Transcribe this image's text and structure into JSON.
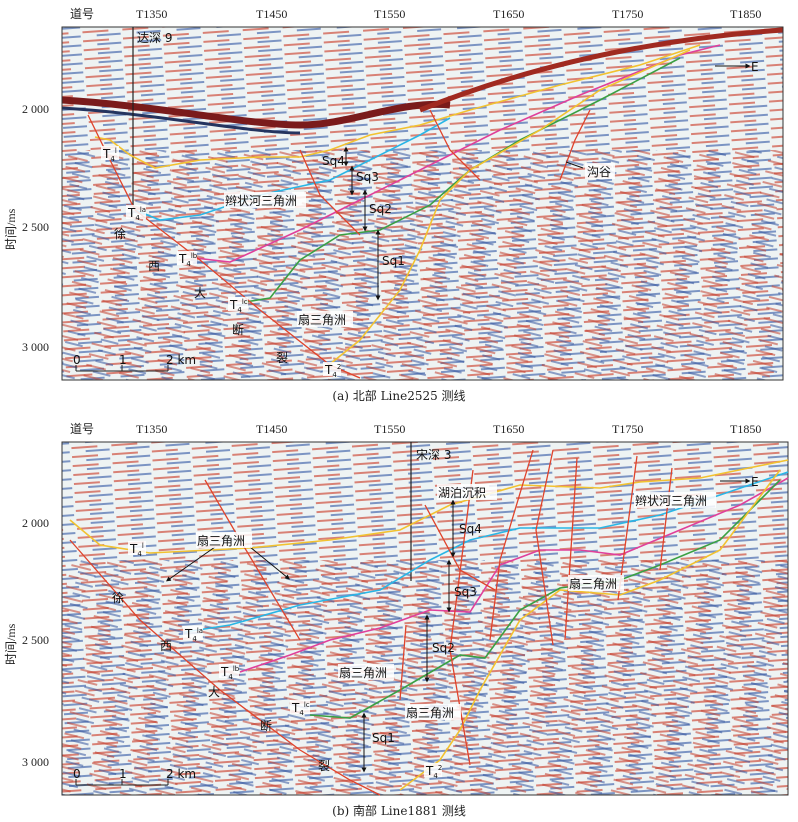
{
  "colors": {
    "yellow": "#f2c230",
    "cyan": "#29b6e6",
    "magenta": "#e0409a",
    "green": "#3aa043",
    "fault": "#e0432b",
    "trough": "#2a4a9a",
    "peak": "#c0392b"
  },
  "axis": {
    "trace_label": "道号",
    "traces": [
      "T1350",
      "T1450",
      "T1550",
      "T1650",
      "T1750",
      "T1850"
    ],
    "y_title": "时间/ms",
    "y_ticks": [
      "2 000",
      "2 500",
      "3 000"
    ],
    "scale": [
      "0",
      "1",
      "2 km"
    ]
  },
  "panel_a": {
    "caption": "(a) 北部 Line2525 测线",
    "well": "达深 9",
    "fault_chars": [
      "徐",
      "西",
      "大",
      "断",
      "裂"
    ],
    "horizons": {
      "t4l": "T",
      "t4l_sup": "l",
      "t4la_sup": "la",
      "t4lb_sup": "lb",
      "t4lc_sup": "lc",
      "t42_sup": "2",
      "sub": "4"
    },
    "sequences": [
      "Sq4",
      "Sq3",
      "Sq2",
      "Sq1"
    ],
    "facies": {
      "braided": "辫状河三角洲",
      "fan": "扇三角洲",
      "valley": "沟谷",
      "east": "E"
    }
  },
  "panel_b": {
    "caption": "(b) 南部 Line1881 测线",
    "well": "宋深 3",
    "fault_chars": [
      "徐",
      "西",
      "大",
      "断",
      "裂"
    ],
    "horizons": {
      "t4l": "T",
      "t4l_sup": "l",
      "t4la_sup": "la",
      "t4lb_sup": "lb",
      "t4lc_sup": "lc",
      "t42_sup": "2",
      "sub": "4"
    },
    "sequences": [
      "Sq4",
      "Sq3",
      "Sq2",
      "Sq1"
    ],
    "facies": {
      "lake": "湖泊沉积",
      "braided": "辫状河三角洲",
      "fan1": "扇三角洲",
      "fan2": "扇三角洲",
      "fan3": "扇三角洲",
      "fan4": "扇三角洲",
      "east": "E"
    }
  }
}
